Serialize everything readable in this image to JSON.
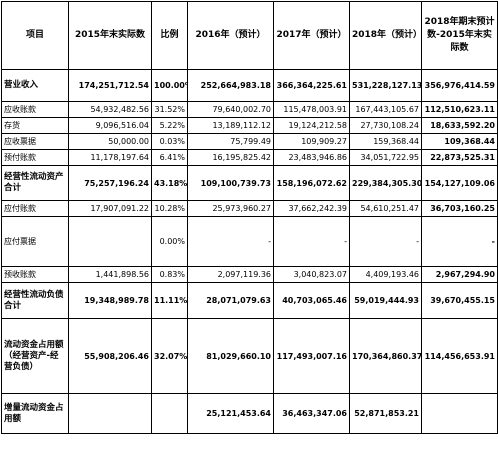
{
  "headers": {
    "item": "项目",
    "y2015": "2015年末实际数",
    "ratio": "比例",
    "y2016": "2016年（预计）",
    "y2017": "2017年（预计）",
    "y2018": "2018年（预计）",
    "diff": "2018年期末预计数-2015年末实际数"
  },
  "rows": [
    {
      "label": "营业收入",
      "v2015": "174,251,712.54",
      "ratio": "100.00%",
      "v2016": "252,664,983.18",
      "v2017": "366,364,225.61",
      "v2018": "531,228,127.13",
      "diff": "356,976,414.59"
    },
    {
      "label": "应收账款",
      "v2015": "54,932,482.56",
      "ratio": "31.52%",
      "v2016": "79,640,002.70",
      "v2017": "115,478,003.91",
      "v2018": "167,443,105.67",
      "diff": "112,510,623.11"
    },
    {
      "label": "存货",
      "v2015": "9,096,516.04",
      "ratio": "5.22%",
      "v2016": "13,189,112.12",
      "v2017": "19,124,212.58",
      "v2018": "27,730,108.24",
      "diff": "18,633,592.20"
    },
    {
      "label": "应收票据",
      "v2015": "50,000.00",
      "ratio": "0.03%",
      "v2016": "75,799.49",
      "v2017": "109,909.27",
      "v2018": "159,368.44",
      "diff": "109,368.44"
    },
    {
      "label": "预付账款",
      "v2015": "11,178,197.64",
      "ratio": "6.41%",
      "v2016": "16,195,825.42",
      "v2017": "23,483,946.86",
      "v2018": "34,051,722.95",
      "diff": "22,873,525.31"
    },
    {
      "label": "经营性流动资产合计",
      "v2015": "75,257,196.24",
      "ratio": "43.18%",
      "v2016": "109,100,739.73",
      "v2017": "158,196,072.62",
      "v2018": "229,384,305.30",
      "diff": "154,127,109.06"
    },
    {
      "label": "应付账款",
      "v2015": "17,907,091.22",
      "ratio": "10.28%",
      "v2016": "25,973,960.27",
      "v2017": "37,662,242.39",
      "v2018": "54,610,251.47",
      "diff": "36,703,160.25"
    },
    {
      "label": "应付票据",
      "v2015": "",
      "ratio": "0.00%",
      "v2016": "-",
      "v2017": "-",
      "v2018": "-",
      "diff": "-"
    },
    {
      "label": "预收账款",
      "v2015": "1,441,898.56",
      "ratio": "0.83%",
      "v2016": "2,097,119.36",
      "v2017": "3,040,823.07",
      "v2018": "4,409,193.46",
      "diff": "2,967,294.90"
    },
    {
      "label": "经营性流动负债合计",
      "v2015": "19,348,989.78",
      "ratio": "11.11%",
      "v2016": "28,071,079.63",
      "v2017": "40,703,065.46",
      "v2018": "59,019,444.93",
      "diff": "39,670,455.15"
    },
    {
      "label": "流动资金占用额（经营资产-经营负债）",
      "v2015": "55,908,206.46",
      "ratio": "32.07%",
      "v2016": "81,029,660.10",
      "v2017": "117,493,007.16",
      "v2018": "170,364,860.37",
      "diff": "114,456,653.91"
    },
    {
      "label": "增量流动资金占用额",
      "v2015": "",
      "ratio": "",
      "v2016": "25,121,453.64",
      "v2017": "36,463,347.06",
      "v2018": "52,871,853.21",
      "diff": ""
    }
  ]
}
